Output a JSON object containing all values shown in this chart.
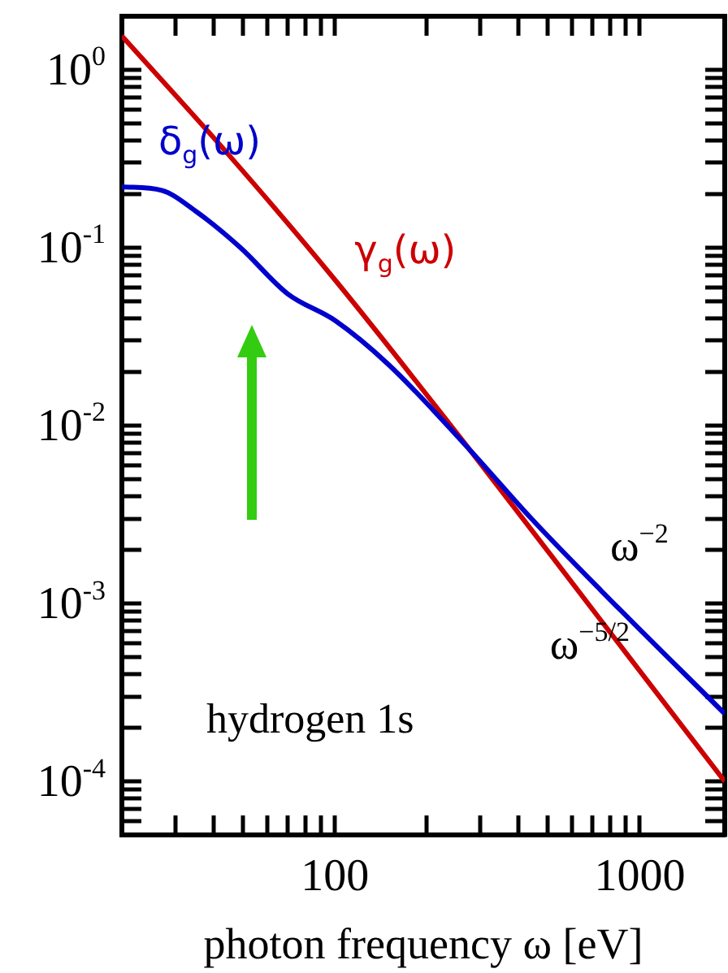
{
  "chart_data": {
    "type": "line",
    "xlabel": "photon frequency ω [eV]",
    "log": "xy",
    "grid": false,
    "legend": false,
    "marker": "none",
    "line_style": "solid",
    "xlim": [
      20,
      1900
    ],
    "ylim": [
      5e-05,
      2
    ],
    "xticks": [
      {
        "value": 20,
        "label": null
      },
      {
        "value": 30,
        "label": null
      },
      {
        "value": 40,
        "label": null
      },
      {
        "value": 50,
        "label": null
      },
      {
        "value": 60,
        "label": null
      },
      {
        "value": 70,
        "label": null
      },
      {
        "value": 80,
        "label": null
      },
      {
        "value": 90,
        "label": null
      },
      100,
      {
        "value": 200,
        "label": null
      },
      {
        "value": 300,
        "label": null
      },
      {
        "value": 400,
        "label": null
      },
      {
        "value": 500,
        "label": null
      },
      {
        "value": 600,
        "label": null
      },
      {
        "value": 700,
        "label": null
      },
      {
        "value": 800,
        "label": null
      },
      {
        "value": 900,
        "label": null
      },
      1000
    ],
    "yticks": [
      {
        "value": 5e-05,
        "label": null
      },
      {
        "value": 6e-05,
        "label": null
      },
      {
        "value": 7e-05,
        "label": null
      },
      {
        "value": 8e-05,
        "label": null
      },
      {
        "value": 9e-05,
        "label": null
      },
      {
        "value": 0.0001,
        "label": "10$^{-4}$"
      },
      {
        "value": 0.0002,
        "label": null
      },
      {
        "value": 0.0003,
        "label": null
      },
      {
        "value": 0.0004,
        "label": null
      },
      {
        "value": 0.0005,
        "label": null
      },
      {
        "value": 0.0006,
        "label": null
      },
      {
        "value": 0.0007,
        "label": null
      },
      {
        "value": 0.0008,
        "label": null
      },
      {
        "value": 0.0009,
        "label": null
      },
      {
        "value": 0.001,
        "label": "10$^{-3}$"
      },
      {
        "value": 0.002,
        "label": null
      },
      {
        "value": 0.003,
        "label": null
      },
      {
        "value": 0.004,
        "label": null
      },
      {
        "value": 0.005,
        "label": null
      },
      {
        "value": 0.006,
        "label": null
      },
      {
        "value": 0.007,
        "label": null
      },
      {
        "value": 0.008,
        "label": null
      },
      {
        "value": 0.009,
        "label": null
      },
      {
        "value": 0.01,
        "label": "10$^{-2}$"
      },
      {
        "value": 0.02,
        "label": null
      },
      {
        "value": 0.03,
        "label": null
      },
      {
        "value": 0.04,
        "label": null
      },
      {
        "value": 0.05,
        "label": null
      },
      {
        "value": 0.06,
        "label": null
      },
      {
        "value": 0.07,
        "label": null
      },
      {
        "value": 0.08,
        "label": null
      },
      {
        "value": 0.09,
        "label": null
      },
      {
        "value": 0.1,
        "label": "10$^{-1}$"
      },
      {
        "value": 0.2,
        "label": null
      },
      {
        "value": 0.3,
        "label": null
      },
      {
        "value": 0.4,
        "label": null
      },
      {
        "value": 0.5,
        "label": null
      },
      {
        "value": 0.6,
        "label": null
      },
      {
        "value": 0.7,
        "label": null
      },
      {
        "value": 0.8,
        "label": null
      },
      {
        "value": 0.9,
        "label": null
      },
      {
        "value": 1,
        "label": "10$^{0}$"
      },
      {
        "value": 2,
        "label": null
      }
    ],
    "series": [
      {
        "name": "δ$_{g}$(ω)",
        "color": "#0000cc",
        "x": [
          20,
          27,
          35,
          49,
          70,
          100,
          150,
          277,
          441,
          747,
          1900
        ],
        "values": [
          0.22,
          0.21,
          0.16,
          0.1,
          0.055,
          0.039,
          0.022,
          0.0073,
          0.003,
          0.00118,
          0.00024
        ]
      },
      {
        "name": "γ$_{g}$(ω)",
        "color": "#cc0000",
        "x": [
          20,
          45,
          100,
          277,
          747,
          1900
        ],
        "values": [
          1.55,
          0.33,
          0.066,
          0.0073,
          0.0008,
          0.0001
        ]
      }
    ],
    "annotations": [
      "ω$^{−2}$",
      "ω$^{−5/2}$",
      "hydrogen 1s"
    ]
  }
}
